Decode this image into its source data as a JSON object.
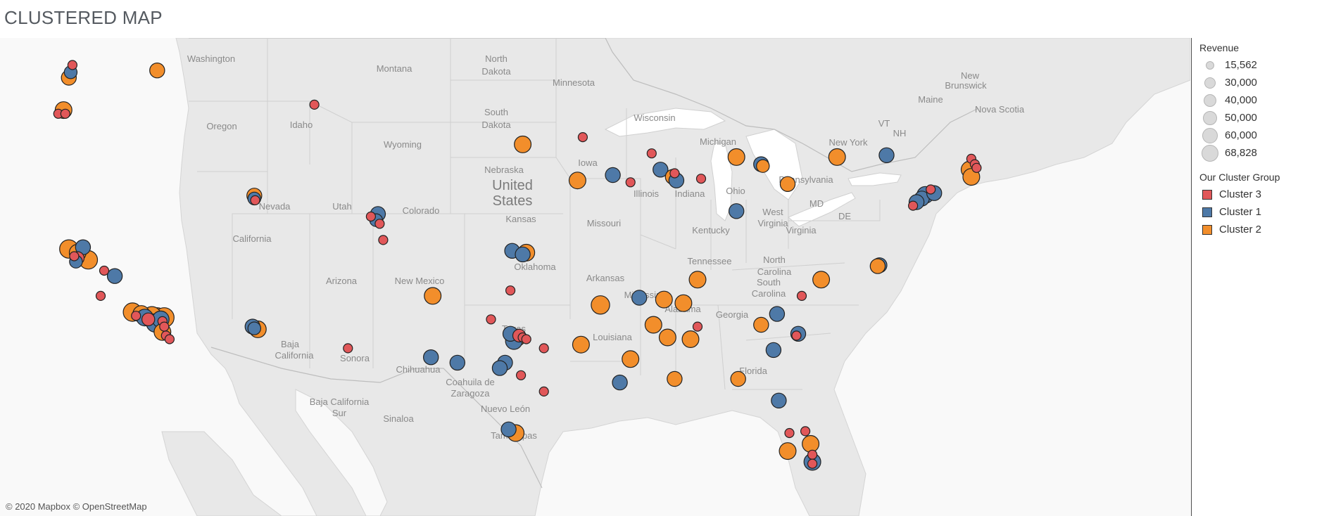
{
  "page": {
    "title": "CLUSTERED MAP",
    "attribution": "© 2020 Mapbox © OpenStreetMap"
  },
  "colors": {
    "cluster_3": "#e15759",
    "cluster_1": "#4e79a7",
    "cluster_2": "#f28e2b",
    "land": "#e9e9e9",
    "water": "#ffffff",
    "border": "#c8c8c8"
  },
  "legend": {
    "revenue_title": "Revenue",
    "revenue_sizes": [
      {
        "label": "15,562"
      },
      {
        "label": "30,000"
      },
      {
        "label": "40,000"
      },
      {
        "label": "50,000"
      },
      {
        "label": "60,000"
      },
      {
        "label": "68,828"
      }
    ],
    "cluster_title": "Our Cluster Group",
    "clusters": [
      {
        "label": "Cluster 3",
        "key": "cluster_3"
      },
      {
        "label": "Cluster 1",
        "key": "cluster_1"
      },
      {
        "label": "Cluster 2",
        "key": "cluster_2"
      }
    ]
  },
  "map_labels": [
    {
      "text": "Washington"
    },
    {
      "text": "Montana"
    },
    {
      "text": "North"
    },
    {
      "text": "Dakota"
    },
    {
      "text": "Minnesota"
    },
    {
      "text": "Oregon"
    },
    {
      "text": "Idaho"
    },
    {
      "text": "South"
    },
    {
      "text": "Dakota"
    },
    {
      "text": "Wisconsin"
    },
    {
      "text": "Michigan"
    },
    {
      "text": "Wyoming"
    },
    {
      "text": "Iowa"
    },
    {
      "text": "Nebraska"
    },
    {
      "text": "United"
    },
    {
      "text": "States"
    },
    {
      "text": "Nevada"
    },
    {
      "text": "Utah"
    },
    {
      "text": "Colorado"
    },
    {
      "text": "Illinois"
    },
    {
      "text": "Indiana"
    },
    {
      "text": "Ohio"
    },
    {
      "text": "Pennsylvania"
    },
    {
      "text": "New York"
    },
    {
      "text": "California"
    },
    {
      "text": "Kansas"
    },
    {
      "text": "Missouri"
    },
    {
      "text": "West"
    },
    {
      "text": "Virginia"
    },
    {
      "text": "Virginia"
    },
    {
      "text": "Kentucky"
    },
    {
      "text": "MD"
    },
    {
      "text": "DE"
    },
    {
      "text": "Arizona"
    },
    {
      "text": "New Mexico"
    },
    {
      "text": "Oklahoma"
    },
    {
      "text": "Tennessee"
    },
    {
      "text": "North"
    },
    {
      "text": "Carolina"
    },
    {
      "text": "Arkansas"
    },
    {
      "text": "South"
    },
    {
      "text": "Carolina"
    },
    {
      "text": "Mississippi"
    },
    {
      "text": "Alabama"
    },
    {
      "text": "Georgia"
    },
    {
      "text": "Texas"
    },
    {
      "text": "Louisiana"
    },
    {
      "text": "Florida"
    },
    {
      "text": "Baja"
    },
    {
      "text": "California"
    },
    {
      "text": "Sonora"
    },
    {
      "text": "Chihuahua"
    },
    {
      "text": "Coahuila de"
    },
    {
      "text": "Zaragoza"
    },
    {
      "text": "Baja California"
    },
    {
      "text": "Sur"
    },
    {
      "text": "Sinaloa"
    },
    {
      "text": "Nuevo León"
    },
    {
      "text": "Tamaulipas"
    },
    {
      "text": "New"
    },
    {
      "text": "Brunswick"
    },
    {
      "text": "Maine"
    },
    {
      "text": "Nova Scotia"
    },
    {
      "text": "VT"
    },
    {
      "text": "NH"
    }
  ],
  "points": [
    {
      "lon": -122.3,
      "lat": 47.6,
      "c": 1,
      "r": 30000
    },
    {
      "lon": -122.4,
      "lat": 47.3,
      "c": 2,
      "r": 40000
    },
    {
      "lon": -122.2,
      "lat": 48.0,
      "c": 3,
      "r": 15562
    },
    {
      "lon": -117.4,
      "lat": 47.7,
      "c": 2,
      "r": 40000
    },
    {
      "lon": -122.7,
      "lat": 45.5,
      "c": 2,
      "r": 50000
    },
    {
      "lon": -123.0,
      "lat": 45.3,
      "c": 3,
      "r": 15562
    },
    {
      "lon": -122.6,
      "lat": 45.3,
      "c": 3,
      "r": 15562
    },
    {
      "lon": -108.5,
      "lat": 45.8,
      "c": 3,
      "r": 15562
    },
    {
      "lon": -111.9,
      "lat": 40.76,
      "c": 2,
      "r": 40000
    },
    {
      "lon": -111.9,
      "lat": 40.6,
      "c": 1,
      "r": 30000
    },
    {
      "lon": -111.85,
      "lat": 40.5,
      "c": 3,
      "r": 15562
    },
    {
      "lon": -104.9,
      "lat": 39.74,
      "c": 1,
      "r": 40000
    },
    {
      "lon": -105.3,
      "lat": 39.6,
      "c": 3,
      "r": 15562
    },
    {
      "lon": -105.0,
      "lat": 39.4,
      "c": 1,
      "r": 30000
    },
    {
      "lon": -104.8,
      "lat": 39.2,
      "c": 3,
      "r": 15562
    },
    {
      "lon": -104.6,
      "lat": 38.3,
      "c": 3,
      "r": 15562
    },
    {
      "lon": -122.4,
      "lat": 37.8,
      "c": 2,
      "r": 60000
    },
    {
      "lon": -121.9,
      "lat": 37.6,
      "c": 2,
      "r": 50000
    },
    {
      "lon": -121.6,
      "lat": 37.9,
      "c": 1,
      "r": 40000
    },
    {
      "lon": -122.1,
      "lat": 37.4,
      "c": 3,
      "r": 15562
    },
    {
      "lon": -121.9,
      "lat": 37.3,
      "c": 3,
      "r": 30000
    },
    {
      "lon": -122.0,
      "lat": 37.1,
      "c": 1,
      "r": 30000
    },
    {
      "lon": -121.3,
      "lat": 37.2,
      "c": 2,
      "r": 60000
    },
    {
      "lon": -120.4,
      "lat": 36.6,
      "c": 3,
      "r": 15562
    },
    {
      "lon": -119.8,
      "lat": 36.3,
      "c": 1,
      "r": 40000
    },
    {
      "lon": -120.6,
      "lat": 35.2,
      "c": 3,
      "r": 15562
    },
    {
      "lon": -118.8,
      "lat": 34.3,
      "c": 2,
      "r": 60000
    },
    {
      "lon": -118.6,
      "lat": 34.1,
      "c": 3,
      "r": 15562
    },
    {
      "lon": -118.3,
      "lat": 34.2,
      "c": 2,
      "r": 50000
    },
    {
      "lon": -118.1,
      "lat": 34.0,
      "c": 1,
      "r": 50000
    },
    {
      "lon": -117.9,
      "lat": 33.9,
      "c": 3,
      "r": 30000
    },
    {
      "lon": -117.7,
      "lat": 34.1,
      "c": 2,
      "r": 60000
    },
    {
      "lon": -117.4,
      "lat": 34.0,
      "c": 2,
      "r": 68828
    },
    {
      "lon": -117.2,
      "lat": 33.9,
      "c": 1,
      "r": 50000
    },
    {
      "lon": -117.0,
      "lat": 34.0,
      "c": 2,
      "r": 68828
    },
    {
      "lon": -117.5,
      "lat": 33.7,
      "c": 1,
      "r": 60000
    },
    {
      "lon": -117.1,
      "lat": 33.8,
      "c": 3,
      "r": 15562
    },
    {
      "lon": -117.0,
      "lat": 33.5,
      "c": 3,
      "r": 15562
    },
    {
      "lon": -117.1,
      "lat": 33.2,
      "c": 2,
      "r": 50000
    },
    {
      "lon": -116.9,
      "lat": 33.0,
      "c": 3,
      "r": 15562
    },
    {
      "lon": -116.7,
      "lat": 32.8,
      "c": 3,
      "r": 15562
    },
    {
      "lon": -112.0,
      "lat": 33.5,
      "c": 1,
      "r": 40000
    },
    {
      "lon": -111.7,
      "lat": 33.35,
      "c": 2,
      "r": 50000
    },
    {
      "lon": -111.9,
      "lat": 33.4,
      "c": 1,
      "r": 30000
    },
    {
      "lon": -106.6,
      "lat": 32.3,
      "c": 3,
      "r": 15562
    },
    {
      "lon": -101.8,
      "lat": 35.2,
      "c": 2,
      "r": 50000
    },
    {
      "lon": -97.4,
      "lat": 35.5,
      "c": 3,
      "r": 15562
    },
    {
      "lon": -98.5,
      "lat": 33.9,
      "c": 3,
      "r": 15562
    },
    {
      "lon": -97.4,
      "lat": 33.1,
      "c": 1,
      "r": 40000
    },
    {
      "lon": -97.0,
      "lat": 32.9,
      "c": 2,
      "r": 50000
    },
    {
      "lon": -97.2,
      "lat": 32.7,
      "c": 1,
      "r": 50000
    },
    {
      "lon": -96.9,
      "lat": 33.0,
      "c": 3,
      "r": 30000
    },
    {
      "lon": -96.7,
      "lat": 32.9,
      "c": 3,
      "r": 15562
    },
    {
      "lon": -96.5,
      "lat": 32.8,
      "c": 3,
      "r": 15562
    },
    {
      "lon": -95.5,
      "lat": 32.3,
      "c": 3,
      "r": 15562
    },
    {
      "lon": -101.9,
      "lat": 31.8,
      "c": 1,
      "r": 40000
    },
    {
      "lon": -100.4,
      "lat": 31.5,
      "c": 1,
      "r": 40000
    },
    {
      "lon": -97.7,
      "lat": 31.5,
      "c": 1,
      "r": 40000
    },
    {
      "lon": -98.0,
      "lat": 31.2,
      "c": 1,
      "r": 40000
    },
    {
      "lon": -96.8,
      "lat": 30.8,
      "c": 3,
      "r": 15562
    },
    {
      "lon": -95.5,
      "lat": 29.9,
      "c": 3,
      "r": 15562
    },
    {
      "lon": -97.5,
      "lat": 27.8,
      "c": 1,
      "r": 40000
    },
    {
      "lon": -97.1,
      "lat": 27.6,
      "c": 2,
      "r": 50000
    },
    {
      "lon": -97.3,
      "lat": 37.7,
      "c": 1,
      "r": 40000
    },
    {
      "lon": -96.5,
      "lat": 37.6,
      "c": 2,
      "r": 50000
    },
    {
      "lon": -96.7,
      "lat": 37.5,
      "c": 1,
      "r": 40000
    },
    {
      "lon": -96.7,
      "lat": 43.6,
      "c": 2,
      "r": 50000
    },
    {
      "lon": -93.3,
      "lat": 44.0,
      "c": 3,
      "r": 15562
    },
    {
      "lon": -93.6,
      "lat": 41.6,
      "c": 2,
      "r": 50000
    },
    {
      "lon": -91.6,
      "lat": 41.9,
      "c": 1,
      "r": 40000
    },
    {
      "lon": -90.6,
      "lat": 41.5,
      "c": 3,
      "r": 15562
    },
    {
      "lon": -89.4,
      "lat": 43.1,
      "c": 3,
      "r": 15562
    },
    {
      "lon": -88.9,
      "lat": 42.2,
      "c": 1,
      "r": 40000
    },
    {
      "lon": -88.2,
      "lat": 41.8,
      "c": 2,
      "r": 40000
    },
    {
      "lon": -88.0,
      "lat": 41.6,
      "c": 1,
      "r": 40000
    },
    {
      "lon": -88.1,
      "lat": 42.0,
      "c": 3,
      "r": 15562
    },
    {
      "lon": -86.6,
      "lat": 41.7,
      "c": 3,
      "r": 15562
    },
    {
      "lon": -84.6,
      "lat": 42.9,
      "c": 2,
      "r": 50000
    },
    {
      "lon": -83.2,
      "lat": 42.5,
      "c": 1,
      "r": 40000
    },
    {
      "lon": -83.1,
      "lat": 42.4,
      "c": 2,
      "r": 30000
    },
    {
      "lon": -81.7,
      "lat": 41.4,
      "c": 2,
      "r": 40000
    },
    {
      "lon": -84.6,
      "lat": 39.9,
      "c": 1,
      "r": 40000
    },
    {
      "lon": -78.9,
      "lat": 42.9,
      "c": 2,
      "r": 50000
    },
    {
      "lon": -76.1,
      "lat": 43.0,
      "c": 1,
      "r": 40000
    },
    {
      "lon": -71.3,
      "lat": 42.8,
      "c": 3,
      "r": 15562
    },
    {
      "lon": -71.1,
      "lat": 42.5,
      "c": 3,
      "r": 15562
    },
    {
      "lon": -71.4,
      "lat": 42.2,
      "c": 2,
      "r": 50000
    },
    {
      "lon": -71.0,
      "lat": 42.3,
      "c": 3,
      "r": 15562
    },
    {
      "lon": -71.3,
      "lat": 41.8,
      "c": 2,
      "r": 50000
    },
    {
      "lon": -73.6,
      "lat": 41.1,
      "c": 3,
      "r": 15562
    },
    {
      "lon": -73.9,
      "lat": 40.8,
      "c": 1,
      "r": 50000
    },
    {
      "lon": -74.1,
      "lat": 40.6,
      "c": 1,
      "r": 40000
    },
    {
      "lon": -74.4,
      "lat": 40.4,
      "c": 1,
      "r": 40000
    },
    {
      "lon": -73.4,
      "lat": 40.9,
      "c": 1,
      "r": 40000
    },
    {
      "lon": -74.6,
      "lat": 40.2,
      "c": 3,
      "r": 15562
    },
    {
      "lon": -76.5,
      "lat": 36.9,
      "c": 1,
      "r": 40000
    },
    {
      "lon": -76.6,
      "lat": 36.85,
      "c": 2,
      "r": 40000
    },
    {
      "lon": -92.3,
      "lat": 34.7,
      "c": 2,
      "r": 60000
    },
    {
      "lon": -90.1,
      "lat": 35.1,
      "c": 1,
      "r": 40000
    },
    {
      "lon": -88.7,
      "lat": 35.0,
      "c": 2,
      "r": 50000
    },
    {
      "lon": -86.8,
      "lat": 36.1,
      "c": 2,
      "r": 50000
    },
    {
      "lon": -87.6,
      "lat": 34.8,
      "c": 2,
      "r": 50000
    },
    {
      "lon": -86.8,
      "lat": 33.5,
      "c": 3,
      "r": 15562
    },
    {
      "lon": -89.3,
      "lat": 33.6,
      "c": 2,
      "r": 50000
    },
    {
      "lon": -88.5,
      "lat": 32.9,
      "c": 2,
      "r": 50000
    },
    {
      "lon": -87.2,
      "lat": 32.8,
      "c": 2,
      "r": 50000
    },
    {
      "lon": -90.6,
      "lat": 31.7,
      "c": 2,
      "r": 50000
    },
    {
      "lon": -93.4,
      "lat": 32.5,
      "c": 2,
      "r": 50000
    },
    {
      "lon": -91.2,
      "lat": 30.4,
      "c": 1,
      "r": 40000
    },
    {
      "lon": -88.1,
      "lat": 30.6,
      "c": 2,
      "r": 40000
    },
    {
      "lon": -80.9,
      "lat": 35.2,
      "c": 3,
      "r": 15562
    },
    {
      "lon": -79.8,
      "lat": 36.1,
      "c": 2,
      "r": 50000
    },
    {
      "lon": -82.3,
      "lat": 34.2,
      "c": 1,
      "r": 40000
    },
    {
      "lon": -83.2,
      "lat": 33.6,
      "c": 2,
      "r": 40000
    },
    {
      "lon": -81.1,
      "lat": 33.1,
      "c": 1,
      "r": 40000
    },
    {
      "lon": -81.2,
      "lat": 33.0,
      "c": 3,
      "r": 15562
    },
    {
      "lon": -82.5,
      "lat": 32.2,
      "c": 1,
      "r": 40000
    },
    {
      "lon": -84.5,
      "lat": 30.6,
      "c": 2,
      "r": 40000
    },
    {
      "lon": -82.2,
      "lat": 29.4,
      "c": 1,
      "r": 40000
    },
    {
      "lon": -81.6,
      "lat": 27.6,
      "c": 3,
      "r": 15562
    },
    {
      "lon": -80.7,
      "lat": 27.7,
      "c": 3,
      "r": 15562
    },
    {
      "lon": -80.4,
      "lat": 27.0,
      "c": 2,
      "r": 50000
    },
    {
      "lon": -81.7,
      "lat": 26.6,
      "c": 2,
      "r": 50000
    },
    {
      "lon": -80.3,
      "lat": 26.4,
      "c": 3,
      "r": 15562
    },
    {
      "lon": -80.3,
      "lat": 26.0,
      "c": 1,
      "r": 50000
    },
    {
      "lon": -80.3,
      "lat": 25.9,
      "c": 3,
      "r": 15562
    }
  ]
}
